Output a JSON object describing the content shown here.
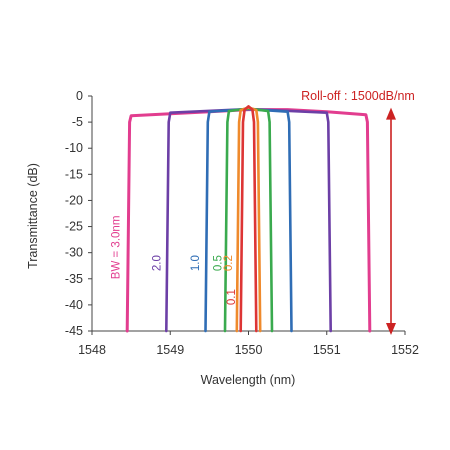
{
  "chart_data": {
    "type": "line",
    "title": "",
    "xlabel": "Wavelength (nm)",
    "ylabel": "Transmittance (dB)",
    "xlim": [
      1548,
      1552
    ],
    "ylim": [
      -45,
      0
    ],
    "xticks": [
      "1548",
      "1549",
      "1550",
      "1551",
      "1552"
    ],
    "yticks": [
      "0",
      "-5",
      "-10",
      "-15",
      "-20",
      "-25",
      "-30",
      "-35",
      "-40",
      "-45"
    ],
    "grid": false,
    "annotation": "Roll-off : 1500dB/nm",
    "annotation_range_db": [
      -3,
      -45
    ],
    "series": [
      {
        "name": "BW = 3.0nm",
        "bandwidth_nm": 3.0,
        "color": "#e23d8f",
        "x": [
          1548.45,
          1548.48,
          1548.5,
          1549.0,
          1549.5,
          1550.0,
          1550.5,
          1551.0,
          1551.5,
          1551.52,
          1551.55
        ],
        "y": [
          -45,
          -5,
          -3.8,
          -3.4,
          -3.0,
          -2.6,
          -2.6,
          -3.0,
          -3.6,
          -5,
          -45
        ]
      },
      {
        "name": "2.0",
        "bandwidth_nm": 2.0,
        "color": "#6c3fa6",
        "x": [
          1548.95,
          1548.98,
          1549.0,
          1550.0,
          1551.0,
          1551.02,
          1551.05
        ],
        "y": [
          -45,
          -5,
          -3.2,
          -2.5,
          -3.2,
          -5,
          -45
        ]
      },
      {
        "name": "1.0",
        "bandwidth_nm": 1.0,
        "color": "#2f6db5",
        "x": [
          1549.45,
          1549.48,
          1549.5,
          1550.0,
          1550.5,
          1550.52,
          1550.55
        ],
        "y": [
          -45,
          -5,
          -3.0,
          -2.5,
          -3.0,
          -5,
          -45
        ]
      },
      {
        "name": "0.5",
        "bandwidth_nm": 0.5,
        "color": "#3aaa4e",
        "x": [
          1549.7,
          1549.73,
          1549.75,
          1550.0,
          1550.25,
          1550.27,
          1550.3
        ],
        "y": [
          -45,
          -5,
          -2.9,
          -2.4,
          -2.9,
          -5,
          -45
        ]
      },
      {
        "name": "0.2",
        "bandwidth_nm": 0.2,
        "color": "#ef8a2c",
        "x": [
          1549.85,
          1549.88,
          1549.9,
          1550.0,
          1550.1,
          1550.12,
          1550.15
        ],
        "y": [
          -45,
          -5,
          -2.7,
          -2.2,
          -2.7,
          -5,
          -45
        ]
      },
      {
        "name": "0.1",
        "bandwidth_nm": 0.1,
        "color": "#dd3535",
        "x": [
          1549.9,
          1549.93,
          1549.95,
          1550.0,
          1550.05,
          1550.07,
          1550.1
        ],
        "y": [
          -45,
          -5,
          -2.6,
          -2.0,
          -2.6,
          -5,
          -45
        ]
      }
    ]
  },
  "colors": {
    "axis": "#444444",
    "annotation": "#cc2222"
  }
}
